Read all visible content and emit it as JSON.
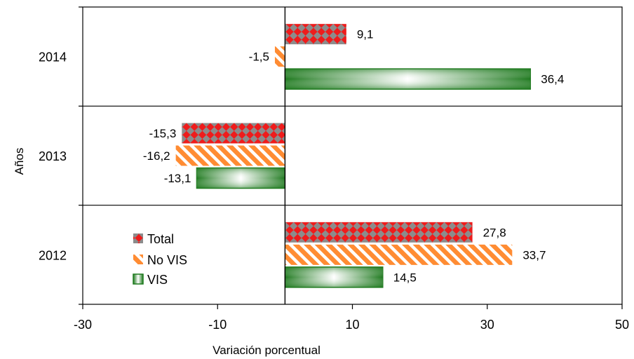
{
  "chart_data": {
    "type": "bar",
    "orientation": "horizontal",
    "categories": [
      "2014",
      "2013",
      "2012"
    ],
    "series": [
      {
        "name": "Total",
        "values": [
          9.1,
          -15.3,
          27.8
        ],
        "labels": [
          "9,1",
          "-15,3",
          "27,8"
        ],
        "color": "#ee1c1c",
        "color2": "#808080",
        "pattern": "checker"
      },
      {
        "name": "No VIS",
        "values": [
          -1.5,
          -16.2,
          33.7
        ],
        "labels": [
          "-1,5",
          "-16,2",
          "33,7"
        ],
        "color": "#ff8c33",
        "color2": "#ffffff",
        "pattern": "diagonal-stripes"
      },
      {
        "name": "VIS",
        "values": [
          36.4,
          -13.1,
          14.5
        ],
        "labels": [
          "36,4",
          "-13,1",
          "14,5"
        ],
        "color": "#1f7a1f",
        "color2": "#ffffff",
        "pattern": "gradient-center"
      }
    ],
    "xlabel": "Variación porcentual",
    "ylabel": "Años",
    "xlim": [
      -30,
      50
    ],
    "xticks": [
      -30,
      -10,
      10,
      30,
      50
    ],
    "xtick_labels": [
      "-30",
      "-10",
      "10",
      "30",
      "50"
    ],
    "zero_line": true,
    "category_separators": true,
    "legend_position": "inside-left-bottom"
  }
}
